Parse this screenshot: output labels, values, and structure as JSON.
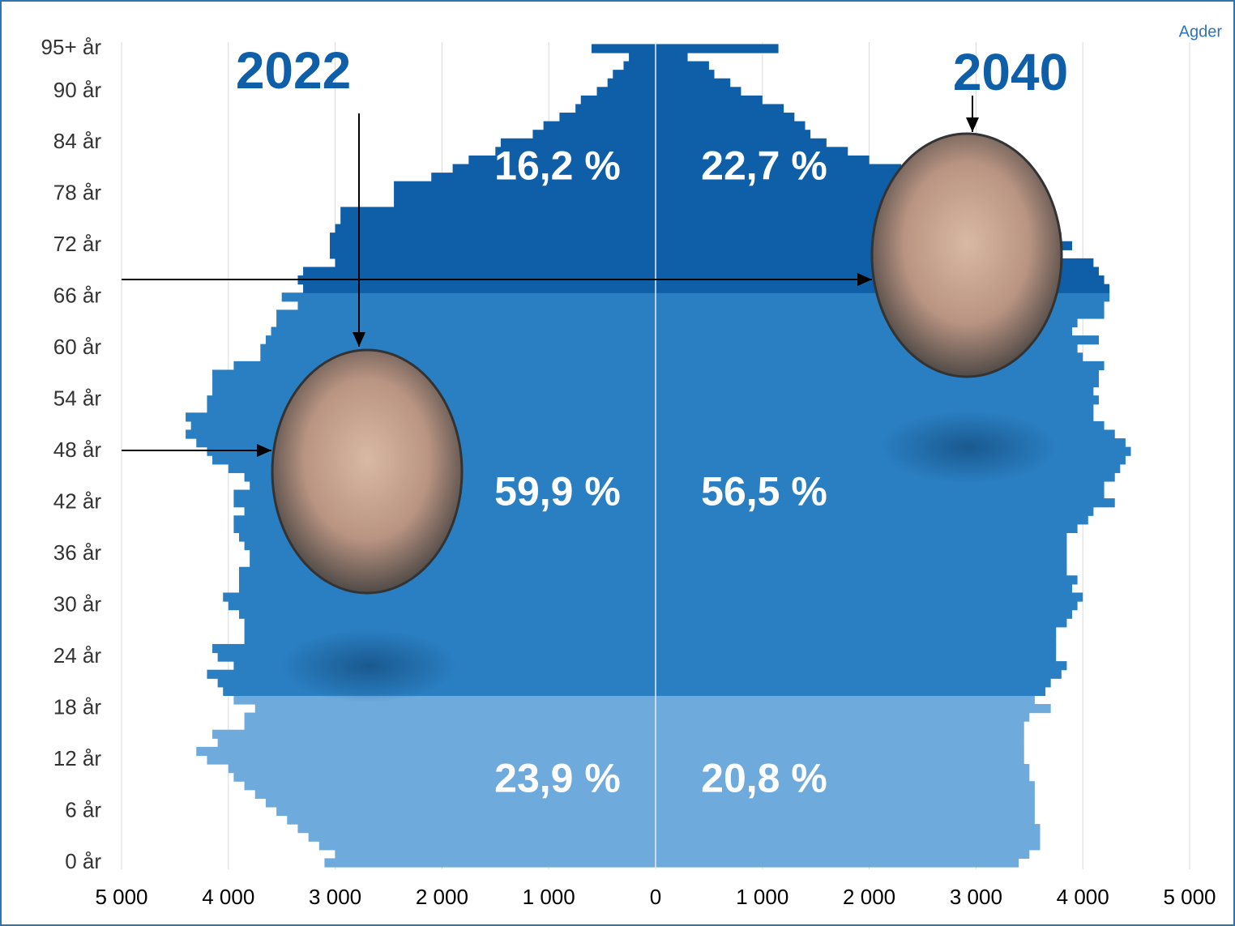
{
  "chart_data": {
    "type": "pyramid",
    "title": "Agder",
    "categories": [
      "0 år",
      null,
      null,
      null,
      null,
      null,
      "6 år",
      null,
      null,
      null,
      null,
      null,
      "12 år",
      null,
      null,
      null,
      null,
      null,
      "18 år",
      null,
      null,
      null,
      null,
      null,
      "24 år",
      null,
      null,
      null,
      null,
      null,
      "30 år",
      null,
      null,
      null,
      null,
      null,
      "36 år",
      null,
      null,
      null,
      null,
      null,
      "42 år",
      null,
      null,
      null,
      null,
      null,
      "48 år",
      null,
      null,
      null,
      null,
      null,
      "54 år",
      null,
      null,
      null,
      null,
      null,
      "60 år",
      null,
      null,
      null,
      null,
      null,
      "66 år",
      null,
      null,
      null,
      null,
      null,
      "72 år",
      null,
      null,
      null,
      null,
      null,
      "78 år",
      null,
      null,
      null,
      null,
      null,
      "84 år",
      null,
      null,
      null,
      null,
      null,
      "90 år",
      null,
      null,
      null,
      null,
      "95+ år"
    ],
    "series": [
      {
        "name": "2022",
        "side": "left",
        "values": [
          3100,
          3000,
          3150,
          3250,
          3350,
          3450,
          3550,
          3650,
          3750,
          3850,
          3950,
          4000,
          4200,
          4300,
          4100,
          4150,
          3850,
          3850,
          3750,
          3950,
          4050,
          4100,
          4200,
          3950,
          4100,
          4150,
          3850,
          3850,
          3850,
          3900,
          4000,
          4050,
          3900,
          3900,
          3900,
          3800,
          3800,
          3850,
          3900,
          3950,
          3950,
          3850,
          3950,
          3950,
          3800,
          3850,
          4000,
          4150,
          4200,
          4300,
          4400,
          4350,
          4400,
          4200,
          4200,
          4150,
          4150,
          4150,
          3950,
          3700,
          3700,
          3650,
          3600,
          3550,
          3550,
          3350,
          3500,
          3300,
          3350,
          3300,
          3000,
          3050,
          3050,
          3050,
          3000,
          2950,
          2950,
          2450,
          2450,
          2450,
          2100,
          1900,
          1750,
          1500,
          1450,
          1150,
          1050,
          900,
          750,
          700,
          550,
          450,
          400,
          300,
          250,
          600
        ]
      },
      {
        "name": "2040",
        "side": "right",
        "values": [
          3400,
          3500,
          3600,
          3600,
          3600,
          3550,
          3550,
          3550,
          3550,
          3550,
          3500,
          3500,
          3450,
          3450,
          3450,
          3450,
          3450,
          3500,
          3700,
          3550,
          3650,
          3700,
          3800,
          3850,
          3750,
          3750,
          3750,
          3750,
          3850,
          3900,
          3950,
          4000,
          3900,
          3950,
          3850,
          3850,
          3850,
          3850,
          3850,
          3950,
          4050,
          4100,
          4300,
          4200,
          4200,
          4300,
          4350,
          4400,
          4450,
          4400,
          4300,
          4200,
          4100,
          4100,
          4150,
          4100,
          4150,
          4150,
          4200,
          4000,
          3950,
          4150,
          3900,
          3950,
          4200,
          4200,
          4250,
          4250,
          4200,
          4150,
          4100,
          3800,
          3900,
          3800,
          3650,
          3400,
          3300,
          3200,
          3000,
          2850,
          2600,
          2300,
          2000,
          1800,
          1600,
          1450,
          1400,
          1300,
          1200,
          1000,
          800,
          700,
          550,
          500,
          300,
          1150
        ]
      }
    ],
    "groups": [
      {
        "ages": [
          0,
          19
        ],
        "color": "#6eaadc",
        "labels": [
          "23,9 %",
          "20,8 %"
        ]
      },
      {
        "ages": [
          20,
          66
        ],
        "color": "#2a7fc2",
        "labels": [
          "59,9 %",
          "56,5 %"
        ]
      },
      {
        "ages": [
          67,
          95
        ],
        "color": "#0f5ea8",
        "labels": [
          "16,2 %",
          "22,7 %"
        ]
      }
    ],
    "xlim": [
      -5000,
      5000
    ],
    "xticks": [
      {
        "value": -5000,
        "label": "5 000"
      },
      {
        "value": -4000,
        "label": "4 000"
      },
      {
        "value": -3000,
        "label": "3 000"
      },
      {
        "value": -2000,
        "label": "2 000"
      },
      {
        "value": -1000,
        "label": "1 000"
      },
      0,
      {
        "value": 1000,
        "label": "1 000"
      },
      {
        "value": 2000,
        "label": "2 000"
      },
      {
        "value": 3000,
        "label": "3 000"
      },
      {
        "value": 4000,
        "label": "4 000"
      },
      {
        "value": 5000,
        "label": "5 000"
      }
    ],
    "grid": true
  }
}
